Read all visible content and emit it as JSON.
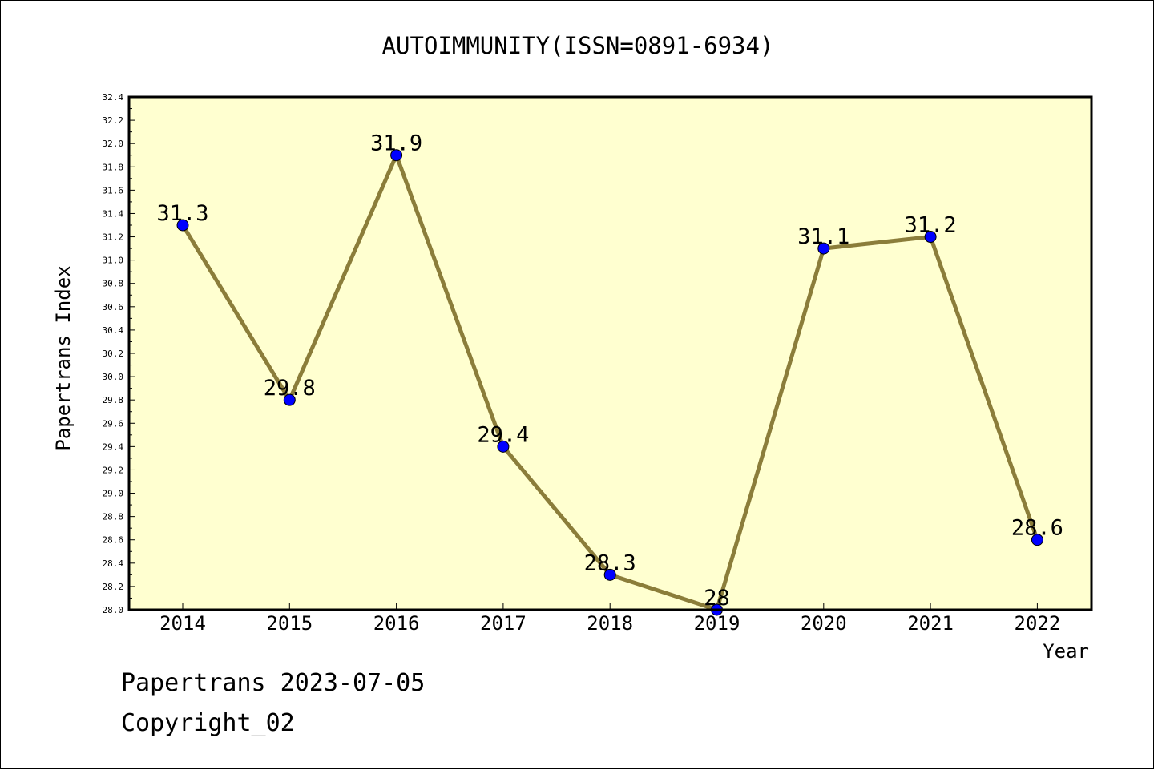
{
  "chart_data": {
    "type": "line",
    "title": "AUTOIMMUNITY(ISSN=0891-6934)",
    "xlabel": "Year",
    "ylabel": "Papertrans Index",
    "categories": [
      "2014",
      "2015",
      "2016",
      "2017",
      "2018",
      "2019",
      "2020",
      "2021",
      "2022"
    ],
    "series": [
      {
        "values": [
          31.3,
          29.8,
          31.9,
          29.4,
          28.3,
          28.0,
          31.1,
          31.2,
          28.6
        ],
        "data_labels": [
          "31.3",
          "29.8",
          "31.9",
          "29.4",
          "28.3",
          "28",
          "31.1",
          "31.2",
          "28.6"
        ],
        "line_color": "#8b7d3a",
        "marker_color": "#0000ff"
      }
    ],
    "ylim": [
      28.0,
      32.4
    ],
    "yticks": [
      "28.0",
      "28.2",
      "28.4",
      "28.6",
      "28.8",
      "29.0",
      "29.2",
      "29.4",
      "29.6",
      "29.8",
      "30.0",
      "30.2",
      "30.4",
      "30.6",
      "30.8",
      "31.0",
      "31.2",
      "31.4",
      "31.6",
      "31.8",
      "32.0",
      "32.2",
      "32.4"
    ],
    "plot_background": "#ffffd0",
    "grid": false,
    "legend": "none"
  },
  "footer": {
    "date_line": "Papertrans 2023-07-05",
    "copyright_line": "Copyright_02"
  }
}
